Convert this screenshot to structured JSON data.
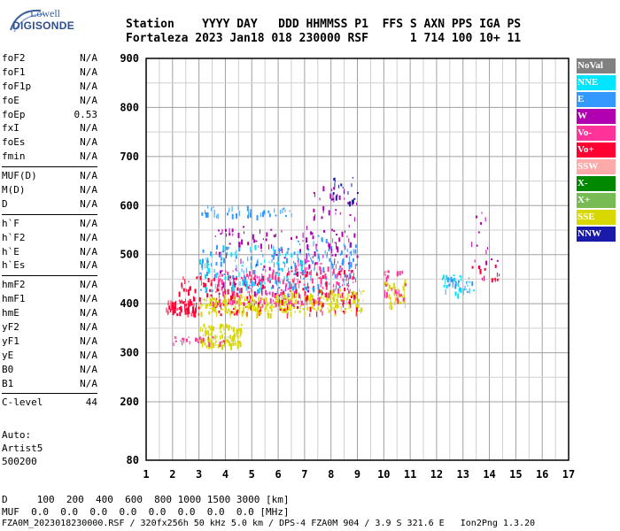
{
  "logo": {
    "line1": "Lowell",
    "line2": "DIGISONDE"
  },
  "header": {
    "labels": "Station    YYYY DAY   DDD HHMMSS P1  FFS S AXN PPS IGA PS",
    "values": "Fortaleza 2023 Jan18 018 230000 RSF      1 714 100 10+ 11"
  },
  "params": {
    "group1": [
      {
        "name": "foF2",
        "value": "N/A"
      },
      {
        "name": "foF1",
        "value": "N/A"
      },
      {
        "name": "foF1p",
        "value": "N/A"
      },
      {
        "name": "foE",
        "value": "N/A"
      },
      {
        "name": "foEp",
        "value": "0.53"
      },
      {
        "name": "fxI",
        "value": "N/A"
      },
      {
        "name": "foEs",
        "value": "N/A"
      },
      {
        "name": "fmin",
        "value": "N/A"
      }
    ],
    "group2": [
      {
        "name": "MUF(D)",
        "value": "N/A"
      },
      {
        "name": "M(D)",
        "value": "N/A"
      },
      {
        "name": "D",
        "value": "N/A"
      }
    ],
    "group3": [
      {
        "name": "h`F",
        "value": "N/A"
      },
      {
        "name": "h`F2",
        "value": "N/A"
      },
      {
        "name": "h`E",
        "value": "N/A"
      },
      {
        "name": "h`Es",
        "value": "N/A"
      }
    ],
    "group4": [
      {
        "name": "hmF2",
        "value": "N/A"
      },
      {
        "name": "hmF1",
        "value": "N/A"
      },
      {
        "name": "hmE",
        "value": "N/A"
      },
      {
        "name": "yF2",
        "value": "N/A"
      },
      {
        "name": "yF1",
        "value": "N/A"
      },
      {
        "name": "yE",
        "value": "N/A"
      },
      {
        "name": "B0",
        "value": "N/A"
      },
      {
        "name": "B1",
        "value": "N/A"
      }
    ],
    "clevel": {
      "name": "C-level",
      "value": "44"
    }
  },
  "auto": {
    "line1": "Auto:",
    "line2": "Artist5",
    "line3": "500200"
  },
  "bottom": {
    "d_row": "D     100  200  400  600  800 1000 1500 3000 [km]",
    "muf_row": "MUF  0.0  0.0  0.0  0.0  0.0  0.0  0.0  0.0 [MHz]",
    "footer": "FZA0M_2023018230000.RSF / 320fx256h 50 kHz 5.0 km / DPS-4 FZA0M 904 / 3.9 S 321.6 E   Ion2Png 1.3.20"
  },
  "legend": [
    {
      "label": "NoVal",
      "color": "#808080"
    },
    {
      "label": "NNE",
      "color": "#00e5ff"
    },
    {
      "label": "E",
      "color": "#3399ff"
    },
    {
      "label": "W",
      "color": "#b000b0"
    },
    {
      "label": "Vo-",
      "color": "#ff3399"
    },
    {
      "label": "Vo+",
      "color": "#ff0033"
    },
    {
      "label": "SSW",
      "color": "#ffaaaa"
    },
    {
      "label": "X-",
      "color": "#008800"
    },
    {
      "label": "X+",
      "color": "#77bb55"
    },
    {
      "label": "SSE",
      "color": "#d8d800"
    },
    {
      "label": "NNW",
      "color": "#1a1aaa"
    }
  ],
  "chart_data": {
    "type": "scatter",
    "xlim": [
      1,
      17
    ],
    "ylim": [
      80,
      900
    ],
    "xticks": [
      "1",
      "2",
      "3",
      "4",
      "5",
      "6",
      "7",
      "8",
      "9",
      "10",
      "11",
      "12",
      "13",
      "14",
      "15",
      "16",
      "17"
    ],
    "yticks": [
      "80",
      "200",
      "300",
      "400",
      "500",
      "600",
      "700",
      "800",
      "900"
    ],
    "grid": true,
    "legend_position": "right",
    "clusters": [
      {
        "color": "#ff0033",
        "x": [
          1.7,
          3.0
        ],
        "y": [
          380,
          410
        ],
        "n": 60
      },
      {
        "color": "#d8d800",
        "x": [
          3.0,
          4.6
        ],
        "y": [
          315,
          360
        ],
        "n": 120
      },
      {
        "color": "#ff3399",
        "x": [
          2.0,
          4.0
        ],
        "y": [
          320,
          335
        ],
        "n": 30
      },
      {
        "color": "#ff0033",
        "x": [
          2.2,
          5.5
        ],
        "y": [
          380,
          460
        ],
        "n": 140
      },
      {
        "color": "#d8d800",
        "x": [
          3.0,
          6.5
        ],
        "y": [
          380,
          420
        ],
        "n": 160
      },
      {
        "color": "#ff3399",
        "x": [
          3.5,
          6.5
        ],
        "y": [
          400,
          470
        ],
        "n": 110
      },
      {
        "color": "#3399ff",
        "x": [
          3.0,
          6.5
        ],
        "y": [
          420,
          520
        ],
        "n": 110
      },
      {
        "color": "#b000b0",
        "x": [
          3.5,
          7.5
        ],
        "y": [
          420,
          560
        ],
        "n": 90
      },
      {
        "color": "#00e5ff",
        "x": [
          3.0,
          7.0
        ],
        "y": [
          430,
          520
        ],
        "n": 70
      },
      {
        "color": "#3399ff",
        "x": [
          3.0,
          6.5
        ],
        "y": [
          580,
          600
        ],
        "n": 40
      },
      {
        "color": "#d8d800",
        "x": [
          6.0,
          9.2
        ],
        "y": [
          385,
          430
        ],
        "n": 150
      },
      {
        "color": "#ff3399",
        "x": [
          6.5,
          9.0
        ],
        "y": [
          400,
          490
        ],
        "n": 110
      },
      {
        "color": "#3399ff",
        "x": [
          6.5,
          9.0
        ],
        "y": [
          430,
          540
        ],
        "n": 90
      },
      {
        "color": "#b000b0",
        "x": [
          7.0,
          9.0
        ],
        "y": [
          480,
          640
        ],
        "n": 70
      },
      {
        "color": "#1a1aaa",
        "x": [
          8.0,
          9.0
        ],
        "y": [
          600,
          660
        ],
        "n": 18
      },
      {
        "color": "#ff0033",
        "x": [
          6.0,
          9.0
        ],
        "y": [
          380,
          470
        ],
        "n": 80
      },
      {
        "color": "#d8d800",
        "x": [
          10.0,
          10.8
        ],
        "y": [
          395,
          450
        ],
        "n": 40
      },
      {
        "color": "#ff3399",
        "x": [
          10.0,
          10.8
        ],
        "y": [
          410,
          470
        ],
        "n": 30
      },
      {
        "color": "#3399ff",
        "x": [
          12.2,
          13.4
        ],
        "y": [
          425,
          455
        ],
        "n": 25
      },
      {
        "color": "#00e5ff",
        "x": [
          12.2,
          13.4
        ],
        "y": [
          420,
          460
        ],
        "n": 20
      },
      {
        "color": "#b000b0",
        "x": [
          13.3,
          14.4
        ],
        "y": [
          440,
          590
        ],
        "n": 18
      },
      {
        "color": "#ff0033",
        "x": [
          13.3,
          14.4
        ],
        "y": [
          450,
          480
        ],
        "n": 10
      }
    ]
  }
}
